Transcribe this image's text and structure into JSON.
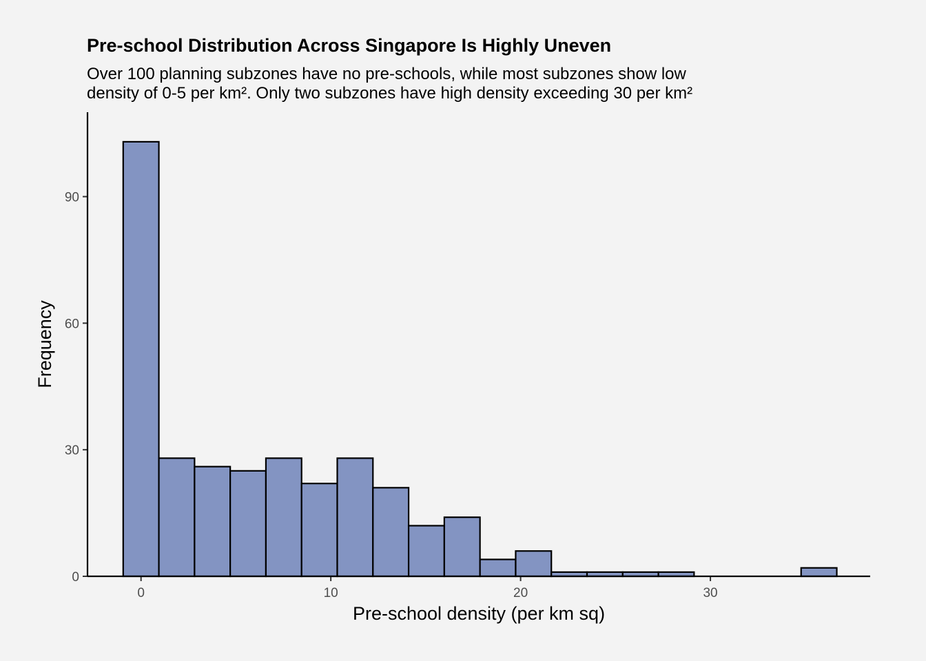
{
  "chart_data": {
    "type": "bar",
    "title": "Pre-school Distribution Across Singapore Is Highly Uneven",
    "subtitle_lines": [
      "Over 100 planning subzones have no pre-schools, while most subzones show low",
      "density of 0-5 per km². Only two subzones have high density exceeding 30 per km²"
    ],
    "xlabel": "Pre-school density (per km sq)",
    "ylabel": "Frequency",
    "xlim": [
      -2.82,
      38.42
    ],
    "ylim": [
      0,
      110
    ],
    "x_ticks": [
      0,
      10,
      20,
      30
    ],
    "y_ticks": [
      0,
      30,
      60,
      90
    ],
    "bin_width": 1.88,
    "bin_start": -0.94,
    "counts": [
      103,
      28,
      26,
      25,
      28,
      22,
      28,
      21,
      12,
      14,
      4,
      6,
      1,
      1,
      1,
      1,
      0,
      0,
      0,
      2
    ],
    "fill_color": "#8394c2",
    "stroke_color": "#000000",
    "grid": false
  }
}
